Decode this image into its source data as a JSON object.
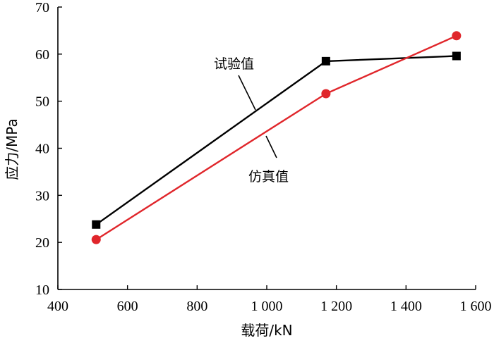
{
  "chart_data": {
    "type": "line",
    "xlabel": "载荷/kN",
    "ylabel": "应力/MPa",
    "xlim": [
      400,
      1600
    ],
    "ylim": [
      10,
      70
    ],
    "xticks": [
      400,
      600,
      800,
      1000,
      1200,
      1400,
      1600
    ],
    "xtick_labels": [
      "400",
      "600",
      "800",
      "1 000",
      "1 200",
      "1 400",
      "1 600"
    ],
    "yticks": [
      10,
      20,
      30,
      40,
      50,
      60,
      70
    ],
    "ytick_labels": [
      "10",
      "20",
      "30",
      "40",
      "50",
      "60",
      "70"
    ],
    "grid": false,
    "series": [
      {
        "name": "试验值",
        "color": "#000000",
        "marker": "square",
        "x": [
          510,
          1170,
          1545
        ],
        "y": [
          23.8,
          58.5,
          59.6
        ]
      },
      {
        "name": "仿真值",
        "color": "#e0262b",
        "marker": "circle",
        "x": [
          510,
          1170,
          1545
        ],
        "y": [
          20.6,
          51.6,
          63.9
        ]
      }
    ]
  }
}
